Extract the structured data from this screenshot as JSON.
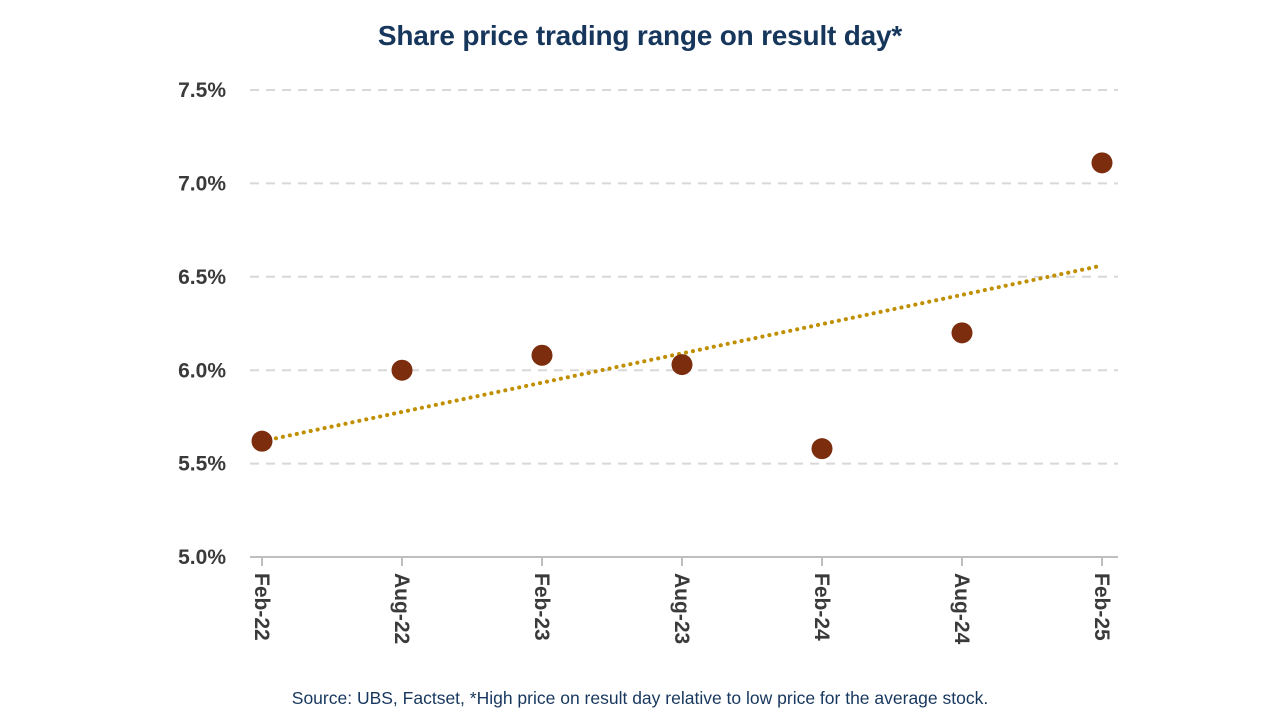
{
  "title": "Share price trading range on result day*",
  "source_note": "Source: UBS, Factset, *High price on result day relative to low price for the average stock.",
  "colors": {
    "title": "#16365C",
    "source": "#17375E",
    "point": "#7B2D0E",
    "trend": "#BF8F00",
    "gridline": "#D8D8D8",
    "axis": "#BFBFBF",
    "tick_label": "#3A3A3A"
  },
  "chart_data": {
    "type": "scatter",
    "title": "Share price trading range on result day*",
    "categories": [
      "Feb-22",
      "Aug-22",
      "Feb-23",
      "Aug-23",
      "Feb-24",
      "Aug-24",
      "Feb-25"
    ],
    "series": [
      {
        "name": "Share price trading range on result day",
        "values": [
          5.62,
          6.0,
          6.08,
          6.03,
          5.58,
          6.2,
          7.11
        ]
      }
    ],
    "trendline": {
      "type": "linear",
      "style": "dotted",
      "start": 5.62,
      "end": 6.56
    },
    "xlabel": "",
    "ylabel": "",
    "ylim": [
      5.0,
      7.5
    ],
    "y_ticks": [
      5.0,
      5.5,
      6.0,
      6.5,
      7.0,
      7.5
    ],
    "y_tick_labels": [
      "5.0%",
      "5.5%",
      "6.0%",
      "6.5%",
      "7.0%",
      "7.5%"
    ],
    "grid": "dashed-horizontal",
    "legend": "none",
    "x_label_rotation": 90
  }
}
